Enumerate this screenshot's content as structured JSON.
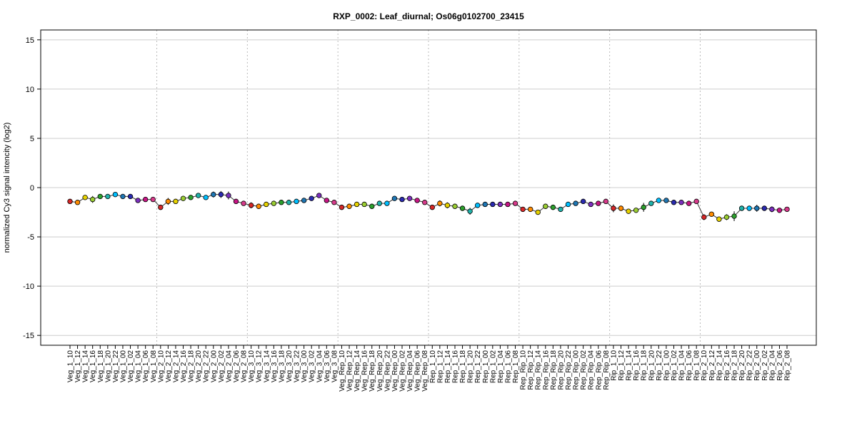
{
  "chart_data": {
    "type": "line",
    "title": "RXP_0002: Leaf_diurnal; Os06g0102700_23415",
    "ylabel": "normalized Cy3 signal intencity (log2)",
    "xlabel": "",
    "ylim": [
      -16,
      16
    ],
    "yticks": [
      -15,
      -10,
      -5,
      0,
      5,
      10,
      15
    ],
    "grid": true,
    "categories": [
      "Veg_1_10",
      "Veg_1_12",
      "Veg_1_14",
      "Veg_1_16",
      "Veg_1_18",
      "Veg_1_20",
      "Veg_1_22",
      "Veg_1_00",
      "Veg_1_02",
      "Veg_1_04",
      "Veg_1_06",
      "Veg_1_08",
      "Veg_2_10",
      "Veg_2_12",
      "Veg_2_14",
      "Veg_2_16",
      "Veg_2_18",
      "Veg_2_20",
      "Veg_2_22",
      "Veg_2_00",
      "Veg_2_02",
      "Veg_2_04",
      "Veg_2_06",
      "Veg_2_08",
      "Veg_3_10",
      "Veg_3_12",
      "Veg_3_14",
      "Veg_3_16",
      "Veg_3_18",
      "Veg_3_20",
      "Veg_3_22",
      "Veg_3_00",
      "Veg_3_02",
      "Veg_3_04",
      "Veg_3_06",
      "Veg_3_08",
      "Veg_Rep_10",
      "Veg_Rep_12",
      "Veg_Rep_14",
      "Veg_Rep_16",
      "Veg_Rep_18",
      "Veg_Rep_20",
      "Veg_Rep_22",
      "Veg_Rep_00",
      "Veg_Rep_02",
      "Veg_Rep_04",
      "Veg_Rep_06",
      "Veg_Rep_08",
      "Rep_1_10",
      "Rep_1_12",
      "Rep_1_14",
      "Rep_1_16",
      "Rep_1_18",
      "Rep_1_20",
      "Rep_1_22",
      "Rep_1_00",
      "Rep_1_02",
      "Rep_1_04",
      "Rep_1_06",
      "Rep_1_08",
      "Rep_Rip_10",
      "Rep_Rip_12",
      "Rep_Rip_14",
      "Rep_Rip_16",
      "Rep_Rip_18",
      "Rep_Rip_20",
      "Rep_Rip_22",
      "Rep_Rip_00",
      "Rep_Rip_02",
      "Rep_Rip_04",
      "Rep_Rip_06",
      "Rep_Rip_08",
      "Rip_1_10",
      "Rip_1_12",
      "Rip_1_14",
      "Rip_1_16",
      "Rip_1_18",
      "Rip_1_20",
      "Rip_1_22",
      "Rip_1_00",
      "Rip_1_02",
      "Rip_1_04",
      "Rip_1_06",
      "Rip_1_08",
      "Rip_2_10",
      "Rip_2_12",
      "Rip_2_14",
      "Rip_2_16",
      "Rip_2_18",
      "Rip_2_20",
      "Rip_2_22",
      "Rip_2_00",
      "Rip_2_02",
      "Rip_2_04",
      "Rip_2_06",
      "Rip_2_08"
    ],
    "values": [
      -1.4,
      -1.5,
      -1.0,
      -1.2,
      -0.9,
      -0.9,
      -0.7,
      -0.9,
      -0.9,
      -1.3,
      -1.2,
      -1.2,
      -2.0,
      -1.4,
      -1.4,
      -1.1,
      -1.0,
      -0.8,
      -1.0,
      -0.7,
      -0.7,
      -0.8,
      -1.4,
      -1.6,
      -1.8,
      -1.9,
      -1.7,
      -1.6,
      -1.5,
      -1.5,
      -1.4,
      -1.3,
      -1.1,
      -0.8,
      -1.3,
      -1.5,
      -2.0,
      -1.9,
      -1.7,
      -1.7,
      -1.9,
      -1.6,
      -1.6,
      -1.1,
      -1.2,
      -1.1,
      -1.3,
      -1.5,
      -2.0,
      -1.6,
      -1.8,
      -1.9,
      -2.1,
      -2.4,
      -1.8,
      -1.7,
      -1.7,
      -1.7,
      -1.7,
      -1.6,
      -2.2,
      -2.2,
      -2.5,
      -1.9,
      -2.0,
      -2.2,
      -1.7,
      -1.6,
      -1.4,
      -1.7,
      -1.6,
      -1.4,
      -2.1,
      -2.1,
      -2.4,
      -2.3,
      -2.0,
      -1.6,
      -1.3,
      -1.3,
      -1.5,
      -1.5,
      -1.6,
      -1.4,
      -3.0,
      -2.7,
      -3.2,
      -3.0,
      -2.9,
      -2.1,
      -2.1,
      -2.1,
      -2.1,
      -2.2,
      -2.3,
      -2.2
    ],
    "errors": [
      0.1,
      0.1,
      0.2,
      0.35,
      0.1,
      0.1,
      0.1,
      0.15,
      0.1,
      0.15,
      0.2,
      0.1,
      0.25,
      0.35,
      0.25,
      0.15,
      0.2,
      0.1,
      0.1,
      0.3,
      0.35,
      0.4,
      0.1,
      0.1,
      0.3,
      0.1,
      0.15,
      0.1,
      0.15,
      0.1,
      0.15,
      0.1,
      0.1,
      0.25,
      0.1,
      0.1,
      0.2,
      0.1,
      0.1,
      0.1,
      0.1,
      0.1,
      0.1,
      0.1,
      0.1,
      0.1,
      0.1,
      0.1,
      0.2,
      0.3,
      0.3,
      0.1,
      0.1,
      0.35,
      0.1,
      0.1,
      0.1,
      0.1,
      0.1,
      0.1,
      0.1,
      0.1,
      0.1,
      0.1,
      0.1,
      0.1,
      0.1,
      0.1,
      0.1,
      0.1,
      0.1,
      0.1,
      0.4,
      0.2,
      0.2,
      0.2,
      0.45,
      0.2,
      0.2,
      0.1,
      0.1,
      0.1,
      0.1,
      0.1,
      0.3,
      0.2,
      0.2,
      0.3,
      0.5,
      0.2,
      0.2,
      0.35,
      0.2,
      0.3,
      0.2,
      0.1
    ],
    "group_size": 12,
    "group_colors": [
      "#d62728",
      "#ff8c00",
      "#e6d200",
      "#9acd32",
      "#2ca02c",
      "#20b2aa",
      "#00bfff",
      "#1f77b4",
      "#2a2ab0",
      "#7b2fbe",
      "#c71585",
      "#d63a8a"
    ]
  }
}
